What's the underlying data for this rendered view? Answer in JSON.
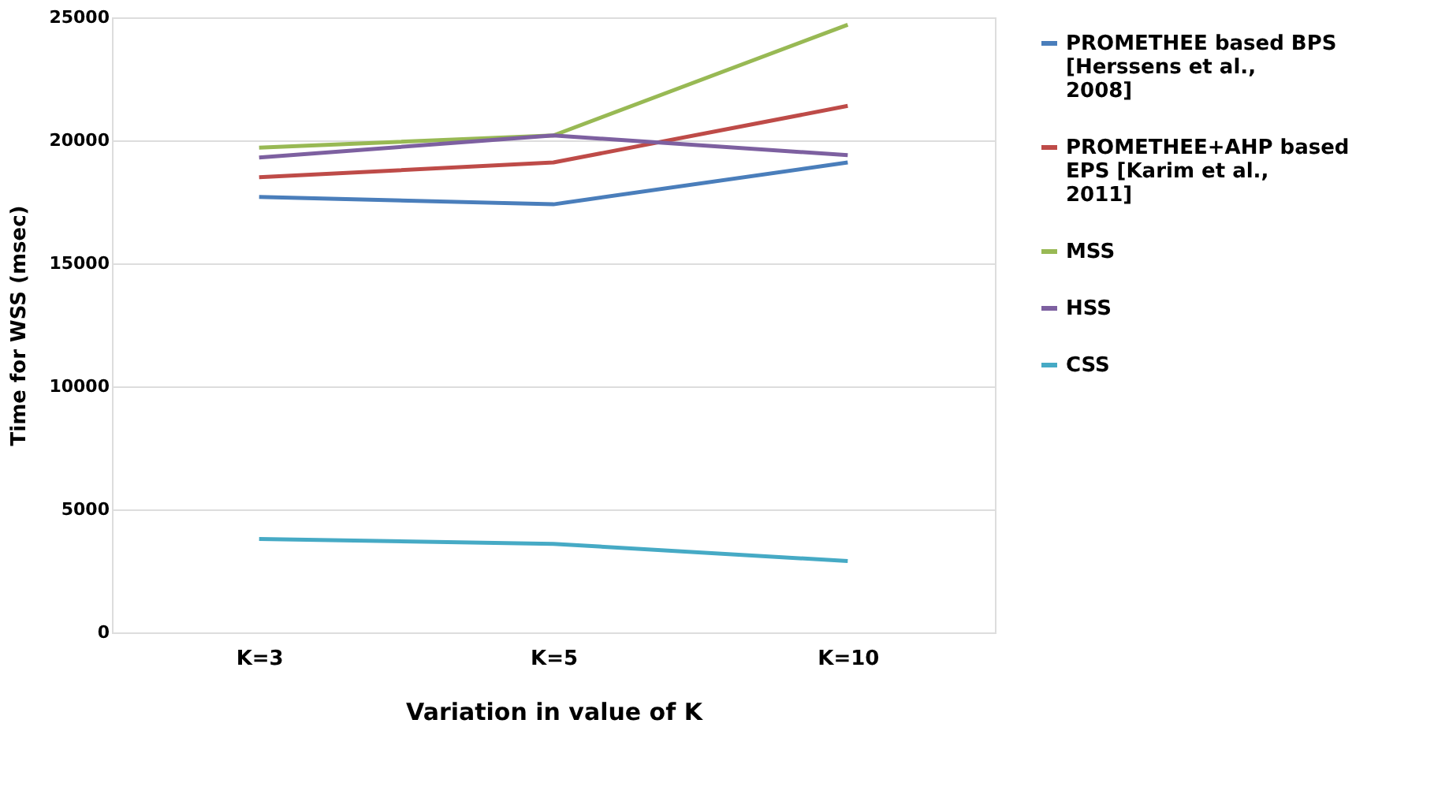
{
  "chart_data": {
    "type": "line",
    "xlabel": "Variation in value of K",
    "ylabel": "Time for WSS (msec)",
    "categories": [
      "K=3",
      "K=5",
      "K=10"
    ],
    "series": [
      {
        "name": "PROMETHEE based BPS [Herssens et al., 2008]",
        "color": "#4a7ebb",
        "values": [
          17700,
          17400,
          19100
        ]
      },
      {
        "name": "PROMETHEE+AHP based EPS [Karim et al., 2011]",
        "color": "#be4b48",
        "values": [
          18500,
          19100,
          21400
        ]
      },
      {
        "name": "MSS",
        "color": "#98b954",
        "values": [
          19700,
          20200,
          24700
        ]
      },
      {
        "name": "HSS",
        "color": "#7d60a0",
        "values": [
          19300,
          20200,
          19400
        ]
      },
      {
        "name": "CSS",
        "color": "#46aac5",
        "values": [
          3800,
          3600,
          2900
        ]
      }
    ],
    "ylim": [
      0,
      25000
    ],
    "yticks": [
      0,
      5000,
      10000,
      15000,
      20000,
      25000
    ],
    "grid": "y",
    "legend": "right",
    "marker": "none",
    "line_style": "solid"
  }
}
